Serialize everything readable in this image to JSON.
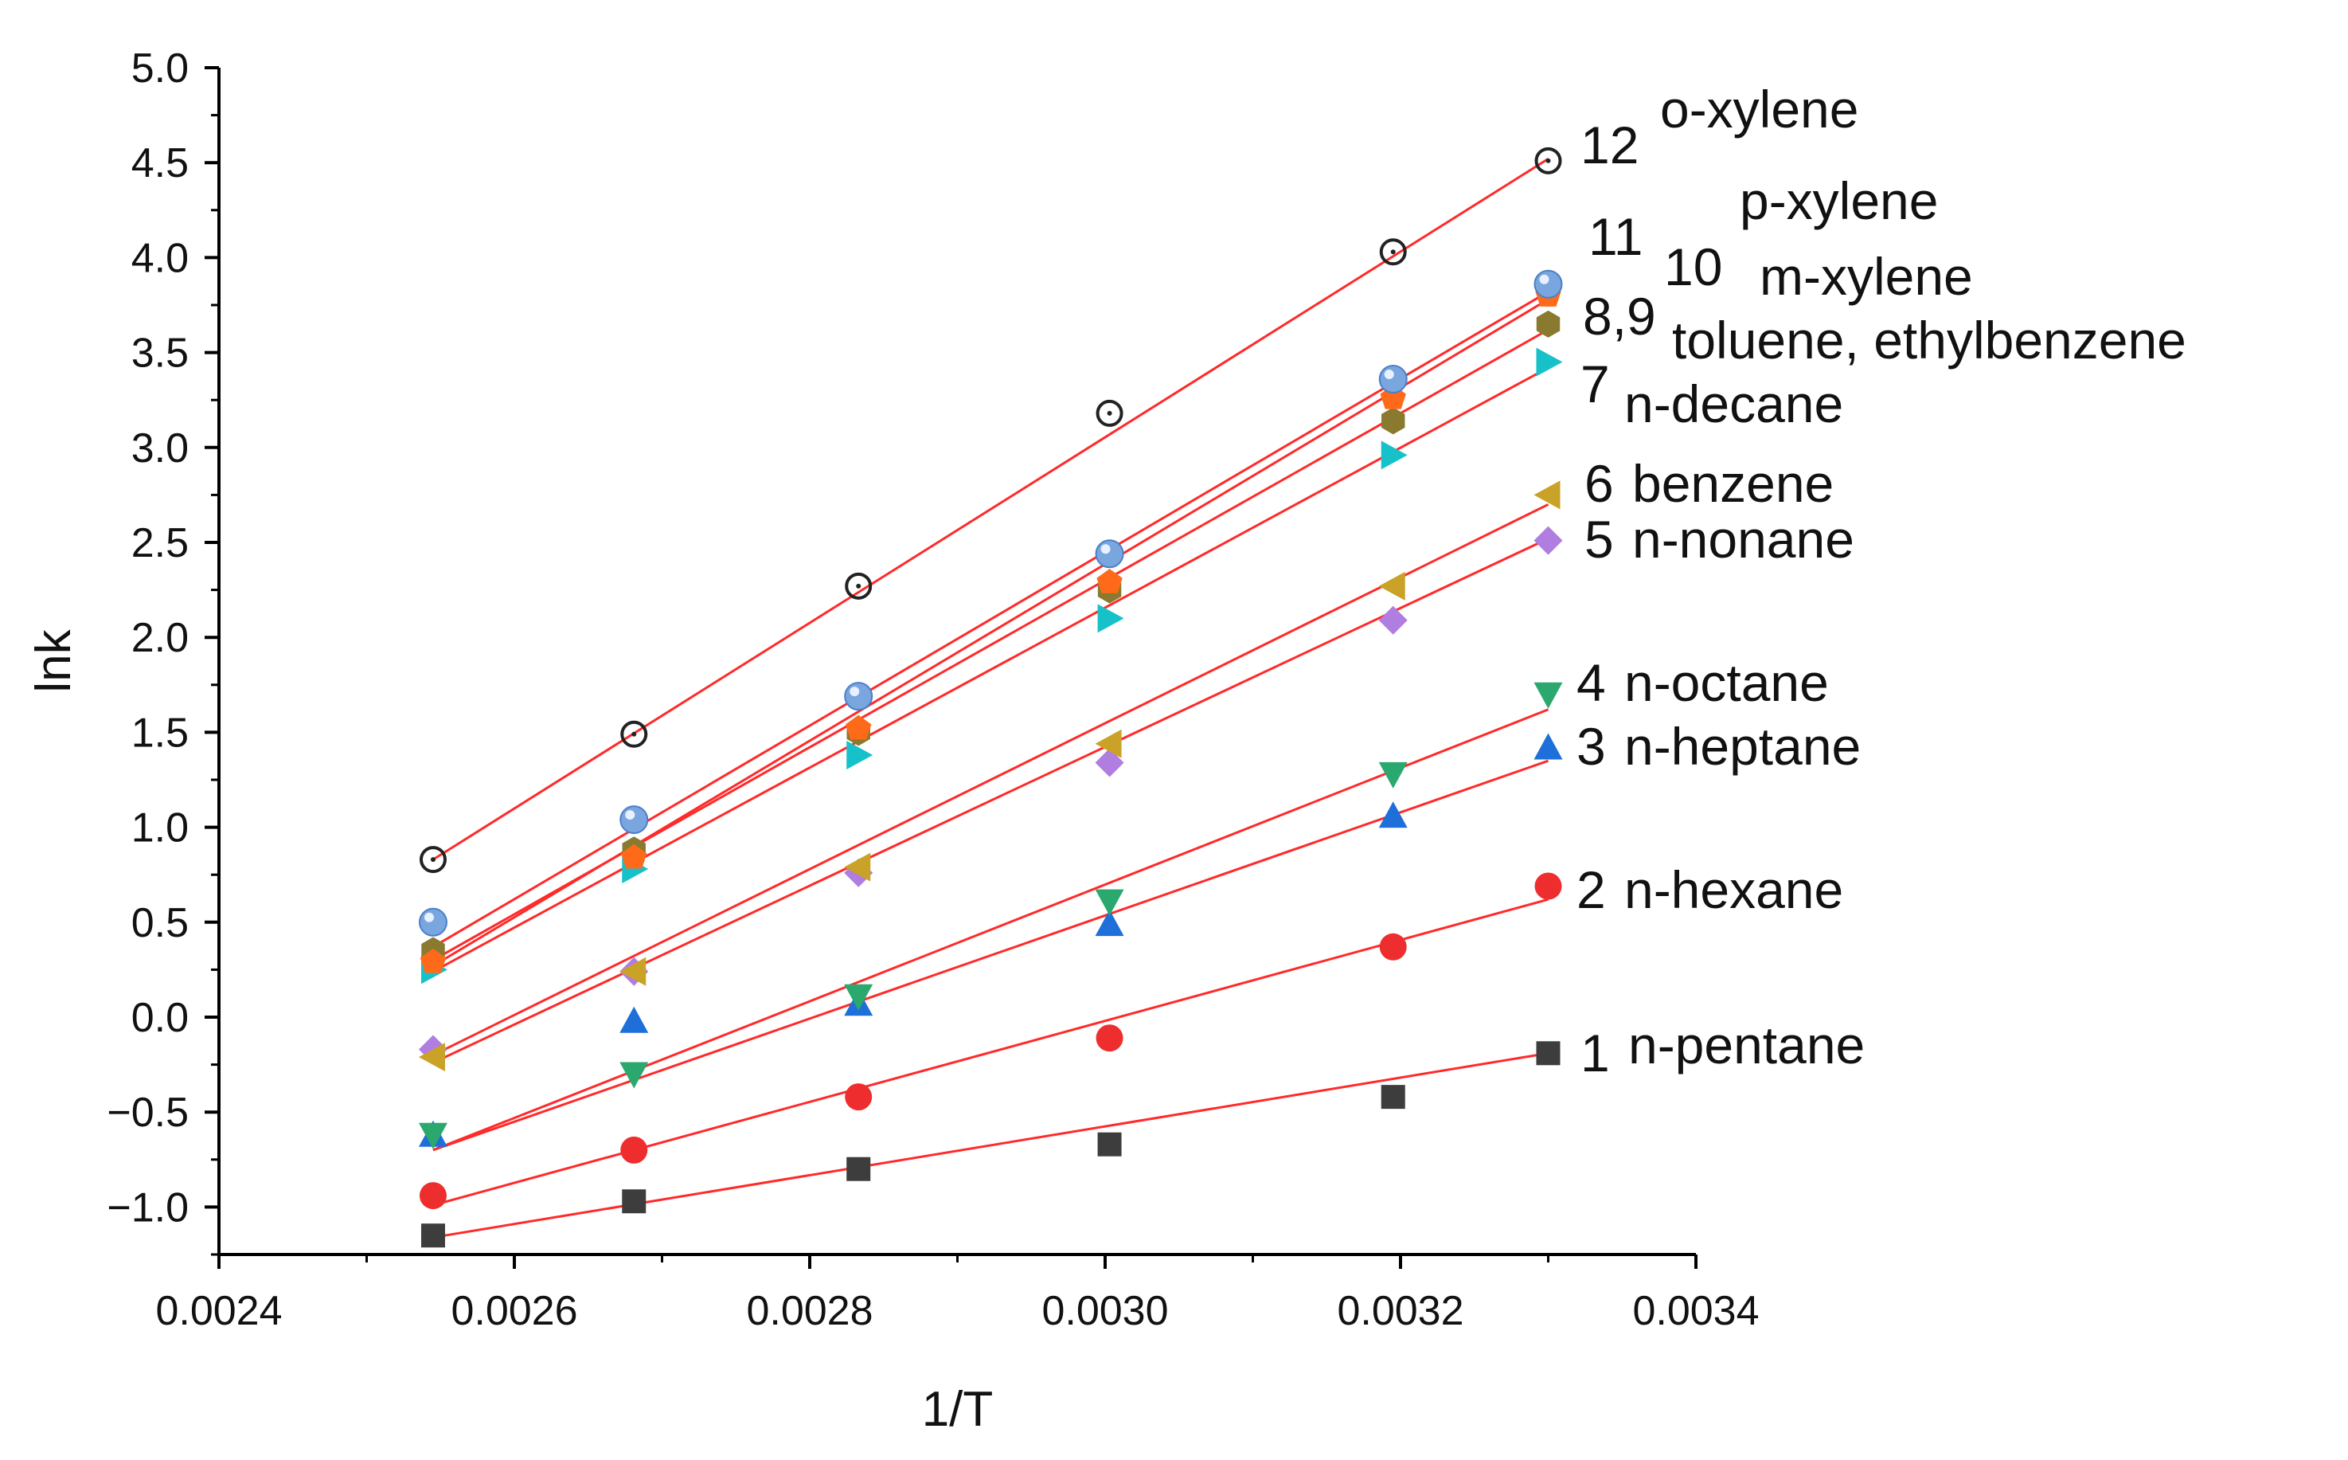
{
  "chart_data": {
    "type": "scatter",
    "title": "",
    "xlabel": "1/T",
    "ylabel": "lnk",
    "xlim": [
      0.0024,
      0.0034
    ],
    "ylim": [
      -1.25,
      5.0
    ],
    "x": [
      0.002545,
      0.002681,
      0.002833,
      0.003003,
      0.003195,
      0.0033
    ],
    "x_ticks": [
      "0.0024",
      "0.0026",
      "0.0028",
      "0.0030",
      "0.0032",
      "0.0034"
    ],
    "x_tick_values": [
      0.0024,
      0.0026,
      0.0028,
      0.003,
      0.0032,
      0.0034
    ],
    "y_ticks": [
      "5.0",
      "4.5",
      "4.0",
      "3.5",
      "3.0",
      "2.5",
      "2.0",
      "1.5",
      "1.0",
      "0.5",
      "0.0",
      "−0.5",
      "−1.0"
    ],
    "y_tick_values": [
      5.0,
      4.5,
      4.0,
      3.5,
      3.0,
      2.5,
      2.0,
      1.5,
      1.0,
      0.5,
      0.0,
      -0.5,
      -1.0
    ],
    "fit_line_color": "#ff2a2a",
    "series": [
      {
        "number": "1",
        "name": "n-pentane",
        "marker": "square",
        "color": "#3d3d3d",
        "values": [
          -1.15,
          -0.97,
          -0.8,
          -0.67,
          -0.42,
          -0.19
        ],
        "fit": [
          -1.16,
          -0.19
        ]
      },
      {
        "number": "2",
        "name": "n-hexane",
        "marker": "circle",
        "color": "#ee2e2e",
        "values": [
          -0.94,
          -0.7,
          -0.42,
          -0.11,
          0.37,
          0.69
        ],
        "fit": [
          -0.99,
          0.62
        ]
      },
      {
        "number": "3",
        "name": "n-heptane",
        "marker": "triangle-up",
        "color": "#1e6fd9",
        "values": [
          -0.62,
          -0.02,
          0.07,
          0.49,
          1.06,
          1.42
        ],
        "fit": [
          -0.7,
          1.35
        ]
      },
      {
        "number": "4",
        "name": "n-octane",
        "marker": "triangle-down",
        "color": "#2aa86e",
        "values": [
          -0.62,
          -0.3,
          0.11,
          0.61,
          1.28,
          1.7
        ],
        "fit": [
          -0.7,
          1.62
        ]
      },
      {
        "number": "5",
        "name": "n-nonane",
        "marker": "diamond",
        "color": "#b07de0",
        "values": [
          -0.17,
          0.24,
          0.76,
          1.34,
          2.09,
          2.51
        ],
        "fit": [
          -0.24,
          2.52
        ]
      },
      {
        "number": "6",
        "name": "benzene",
        "marker": "triangle-left",
        "color": "#c9a227",
        "values": [
          -0.21,
          0.24,
          0.79,
          1.44,
          2.27,
          2.75
        ],
        "fit": [
          -0.2,
          2.7
        ]
      },
      {
        "number": "7",
        "name": "n-decane",
        "marker": "triangle-right",
        "color": "#17c1c9",
        "values": [
          0.25,
          0.78,
          1.38,
          2.1,
          2.96,
          3.45
        ],
        "fit": [
          0.24,
          3.42
        ]
      },
      {
        "number": "8,9",
        "name": "toluene, ethylbenzene",
        "marker": "hexagon",
        "color": "#8a7a2f",
        "values": [
          0.35,
          0.88,
          1.5,
          2.25,
          3.14,
          3.65
        ],
        "fit": [
          0.3,
          3.62
        ]
      },
      {
        "number": "10",
        "name": "m-xylene",
        "marker": "pentagon",
        "color": "#ff6a1a",
        "values": [
          0.29,
          0.84,
          1.52,
          2.29,
          3.26,
          3.8
        ],
        "fit": [
          0.27,
          3.78
        ]
      },
      {
        "number": "11",
        "name": "p-xylene",
        "marker": "sphere",
        "color": "#7aa6e0",
        "values": [
          0.5,
          1.04,
          1.69,
          2.44,
          3.36,
          3.86
        ],
        "fit": [
          0.37,
          3.82
        ]
      },
      {
        "number": "12",
        "name": "o-xylene",
        "marker": "open-circle",
        "color": "#222222",
        "values": [
          0.83,
          1.49,
          2.27,
          3.18,
          4.03,
          4.51
        ],
        "fit": [
          0.83,
          4.52
        ]
      }
    ],
    "annotations": [
      {
        "number": "12",
        "name": "o-xylene"
      },
      {
        "number": "11",
        "name": "p-xylene"
      },
      {
        "number": "10",
        "name": "m-xylene"
      },
      {
        "number": "8,9",
        "name": "toluene, ethylbenzene"
      },
      {
        "number": "7",
        "name": "n-decane"
      },
      {
        "number": "6",
        "name": "benzene"
      },
      {
        "number": "5",
        "name": "n-nonane"
      },
      {
        "number": "4",
        "name": "n-octane"
      },
      {
        "number": "3",
        "name": "n-heptane"
      },
      {
        "number": "2",
        "name": "n-hexane"
      },
      {
        "number": "1",
        "name": "n-pentane"
      }
    ]
  }
}
